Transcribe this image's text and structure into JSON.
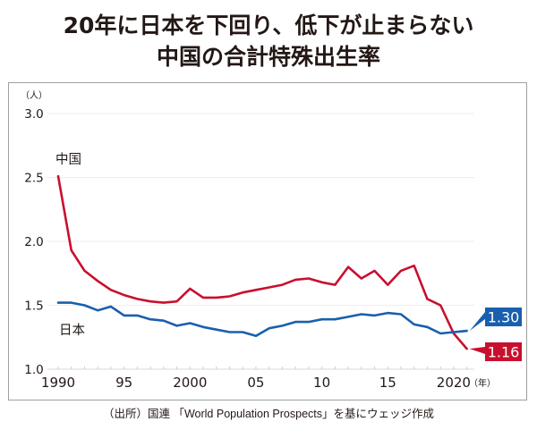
{
  "title_lines": [
    "20年に日本を下回り、低下が止まらない",
    "中国の合計特殊出生率"
  ],
  "source_note": "（出所）国連 「World Population Prospects」を基にウェッジ作成",
  "colors": {
    "china": "#c8102e",
    "japan": "#1a5fad",
    "grid": "#eeeeee",
    "text": "#231815"
  },
  "chart_data": {
    "type": "line",
    "title": "20年に日本を下回り、低下が止まらない 中国の合計特殊出生率",
    "ylabel": "（人）",
    "xlabel": "（年）",
    "xlim": [
      1990,
      2021
    ],
    "ylim": [
      1.0,
      3.0
    ],
    "yticks": [
      {
        "value": 1.0,
        "label": "1.0"
      },
      {
        "value": 1.5,
        "label": "1.5"
      },
      {
        "value": 2.0,
        "label": "2.0"
      },
      {
        "value": 2.5,
        "label": "2.5"
      },
      {
        "value": 3.0,
        "label": "3.0"
      }
    ],
    "xticks": [
      {
        "value": 1990,
        "label": "1990"
      },
      {
        "value": 1995,
        "label": "95"
      },
      {
        "value": 2000,
        "label": "2000"
      },
      {
        "value": 2005,
        "label": "05"
      },
      {
        "value": 2010,
        "label": "10"
      },
      {
        "value": 2015,
        "label": "15"
      },
      {
        "value": 2020,
        "label": "2020"
      }
    ],
    "grid": true,
    "x": [
      1990,
      1991,
      1992,
      1993,
      1994,
      1995,
      1996,
      1997,
      1998,
      1999,
      2000,
      2001,
      2002,
      2003,
      2004,
      2005,
      2006,
      2007,
      2008,
      2009,
      2010,
      2011,
      2012,
      2013,
      2014,
      2015,
      2016,
      2017,
      2018,
      2019,
      2020,
      2021
    ],
    "series": [
      {
        "name": "中国",
        "key": "china",
        "values": [
          2.51,
          1.93,
          1.77,
          1.69,
          1.62,
          1.58,
          1.55,
          1.53,
          1.52,
          1.53,
          1.63,
          1.56,
          1.56,
          1.57,
          1.6,
          1.62,
          1.64,
          1.66,
          1.7,
          1.71,
          1.68,
          1.66,
          1.8,
          1.71,
          1.77,
          1.66,
          1.77,
          1.81,
          1.55,
          1.5,
          1.28,
          1.16
        ],
        "end_label": "1.16"
      },
      {
        "name": "日本",
        "key": "japan",
        "values": [
          1.52,
          1.52,
          1.5,
          1.46,
          1.49,
          1.42,
          1.42,
          1.39,
          1.38,
          1.34,
          1.36,
          1.33,
          1.31,
          1.29,
          1.29,
          1.26,
          1.32,
          1.34,
          1.37,
          1.37,
          1.39,
          1.39,
          1.41,
          1.43,
          1.42,
          1.44,
          1.43,
          1.35,
          1.33,
          1.28,
          1.29,
          1.3
        ],
        "end_label": "1.30"
      }
    ]
  }
}
